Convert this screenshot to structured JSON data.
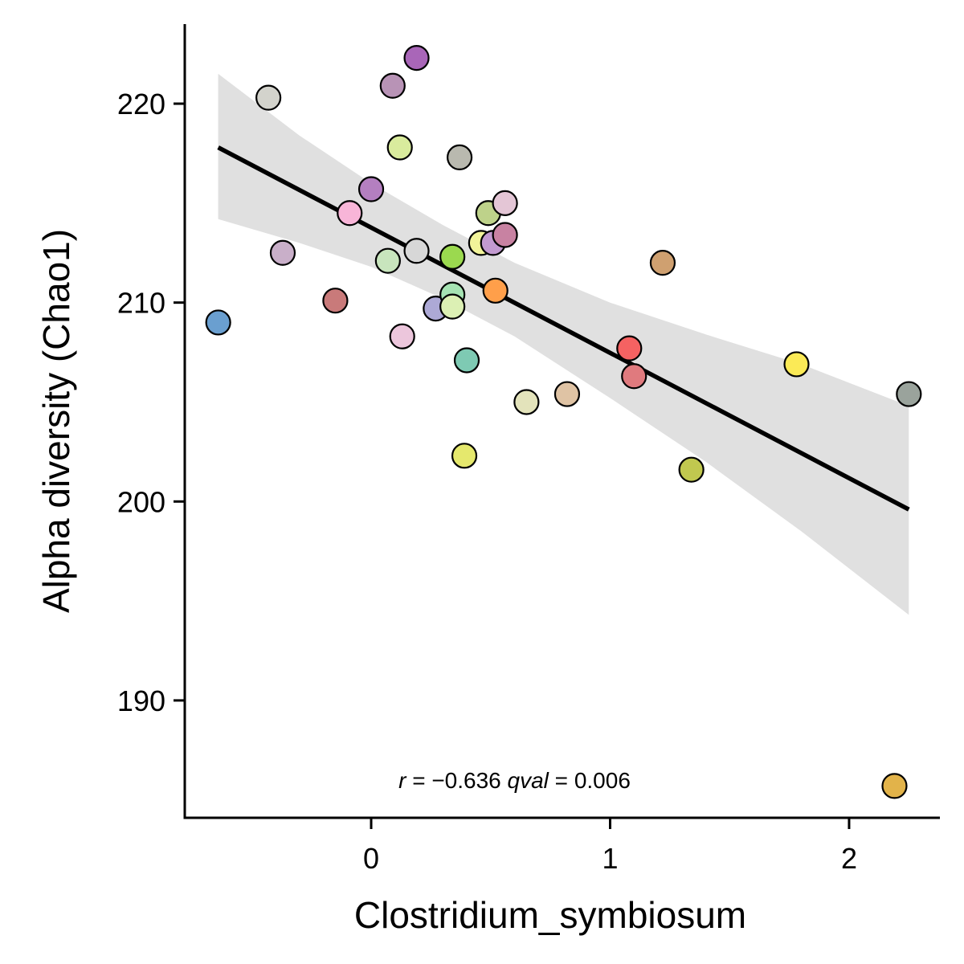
{
  "chart_data": {
    "type": "scatter",
    "xlabel": "Clostridium_symbiosum",
    "ylabel": "Alpha diversity (Chao1)",
    "xlim": [
      -0.78,
      2.38
    ],
    "ylim": [
      184.1,
      224.0
    ],
    "x_ticks": [
      0,
      1,
      2
    ],
    "y_ticks": [
      190,
      200,
      210,
      220
    ],
    "grid": false,
    "legend": "none",
    "points": [
      {
        "x": -0.64,
        "y": 209.0,
        "color": "#6a9fd0"
      },
      {
        "x": -0.43,
        "y": 220.3,
        "color": "#d3d3cc"
      },
      {
        "x": -0.37,
        "y": 212.5,
        "color": "#c9afc9"
      },
      {
        "x": -0.15,
        "y": 210.1,
        "color": "#c97a7a"
      },
      {
        "x": -0.09,
        "y": 214.5,
        "color": "#f8b5d8"
      },
      {
        "x": 0.0,
        "y": 215.7,
        "color": "#b47fc0"
      },
      {
        "x": 0.07,
        "y": 212.1,
        "color": "#c8e5bd"
      },
      {
        "x": 0.09,
        "y": 220.9,
        "color": "#b893b6"
      },
      {
        "x": 0.12,
        "y": 217.8,
        "color": "#d9eb9d"
      },
      {
        "x": 0.13,
        "y": 208.3,
        "color": "#ecc6dc"
      },
      {
        "x": 0.19,
        "y": 212.6,
        "color": "#d7d7d7"
      },
      {
        "x": 0.19,
        "y": 222.3,
        "color": "#a966b8"
      },
      {
        "x": 0.27,
        "y": 209.7,
        "color": "#ada9d6"
      },
      {
        "x": 0.34,
        "y": 210.4,
        "color": "#a6e3b3"
      },
      {
        "x": 0.34,
        "y": 212.3,
        "color": "#9bd94f"
      },
      {
        "x": 0.34,
        "y": 209.8,
        "color": "#dcf0b4"
      },
      {
        "x": 0.37,
        "y": 217.3,
        "color": "#b9b9af"
      },
      {
        "x": 0.39,
        "y": 202.3,
        "color": "#e5e86d"
      },
      {
        "x": 0.4,
        "y": 207.1,
        "color": "#7ecab3"
      },
      {
        "x": 0.46,
        "y": 213.0,
        "color": "#f2f49a"
      },
      {
        "x": 0.49,
        "y": 214.5,
        "color": "#bed28a"
      },
      {
        "x": 0.51,
        "y": 213.0,
        "color": "#c29ad0"
      },
      {
        "x": 0.52,
        "y": 210.6,
        "color": "#ff9f4a"
      },
      {
        "x": 0.56,
        "y": 213.4,
        "color": "#c882a2"
      },
      {
        "x": 0.56,
        "y": 215.0,
        "color": "#e4c6d6"
      },
      {
        "x": 0.65,
        "y": 205.0,
        "color": "#e3e3bb"
      },
      {
        "x": 0.82,
        "y": 205.4,
        "color": "#dfc3a4"
      },
      {
        "x": 1.08,
        "y": 207.7,
        "color": "#f56262"
      },
      {
        "x": 1.1,
        "y": 206.3,
        "color": "#e07a7e"
      },
      {
        "x": 1.22,
        "y": 212.0,
        "color": "#cfa070"
      },
      {
        "x": 1.34,
        "y": 201.6,
        "color": "#c1c84f"
      },
      {
        "x": 1.78,
        "y": 206.9,
        "color": "#fbea56"
      },
      {
        "x": 2.19,
        "y": 185.7,
        "color": "#e2b34a"
      },
      {
        "x": 2.25,
        "y": 205.4,
        "color": "#9aa39c"
      }
    ],
    "fit_line": {
      "x": [
        -0.64,
        2.25
      ],
      "y": [
        217.8,
        199.6
      ],
      "color": "#000000"
    },
    "confidence_band": {
      "color": "#e0e0e0",
      "x": [
        -0.64,
        -0.3,
        0.0,
        0.3,
        0.6,
        1.0,
        1.4,
        1.8,
        2.25
      ],
      "upper": [
        221.5,
        218.4,
        216.0,
        213.9,
        212.0,
        210.0,
        208.4,
        206.9,
        204.8
      ],
      "lower": [
        214.2,
        213.0,
        211.8,
        210.2,
        208.3,
        205.2,
        202.0,
        198.5,
        194.3
      ]
    },
    "annotation": {
      "parts": [
        {
          "text": "r",
          "italic": true
        },
        {
          "text": " = −0.636 ",
          "italic": false
        },
        {
          "text": "qval",
          "italic": true
        },
        {
          "text": " = 0.006",
          "italic": false
        }
      ],
      "x": 0.6,
      "y": 186.0
    }
  }
}
